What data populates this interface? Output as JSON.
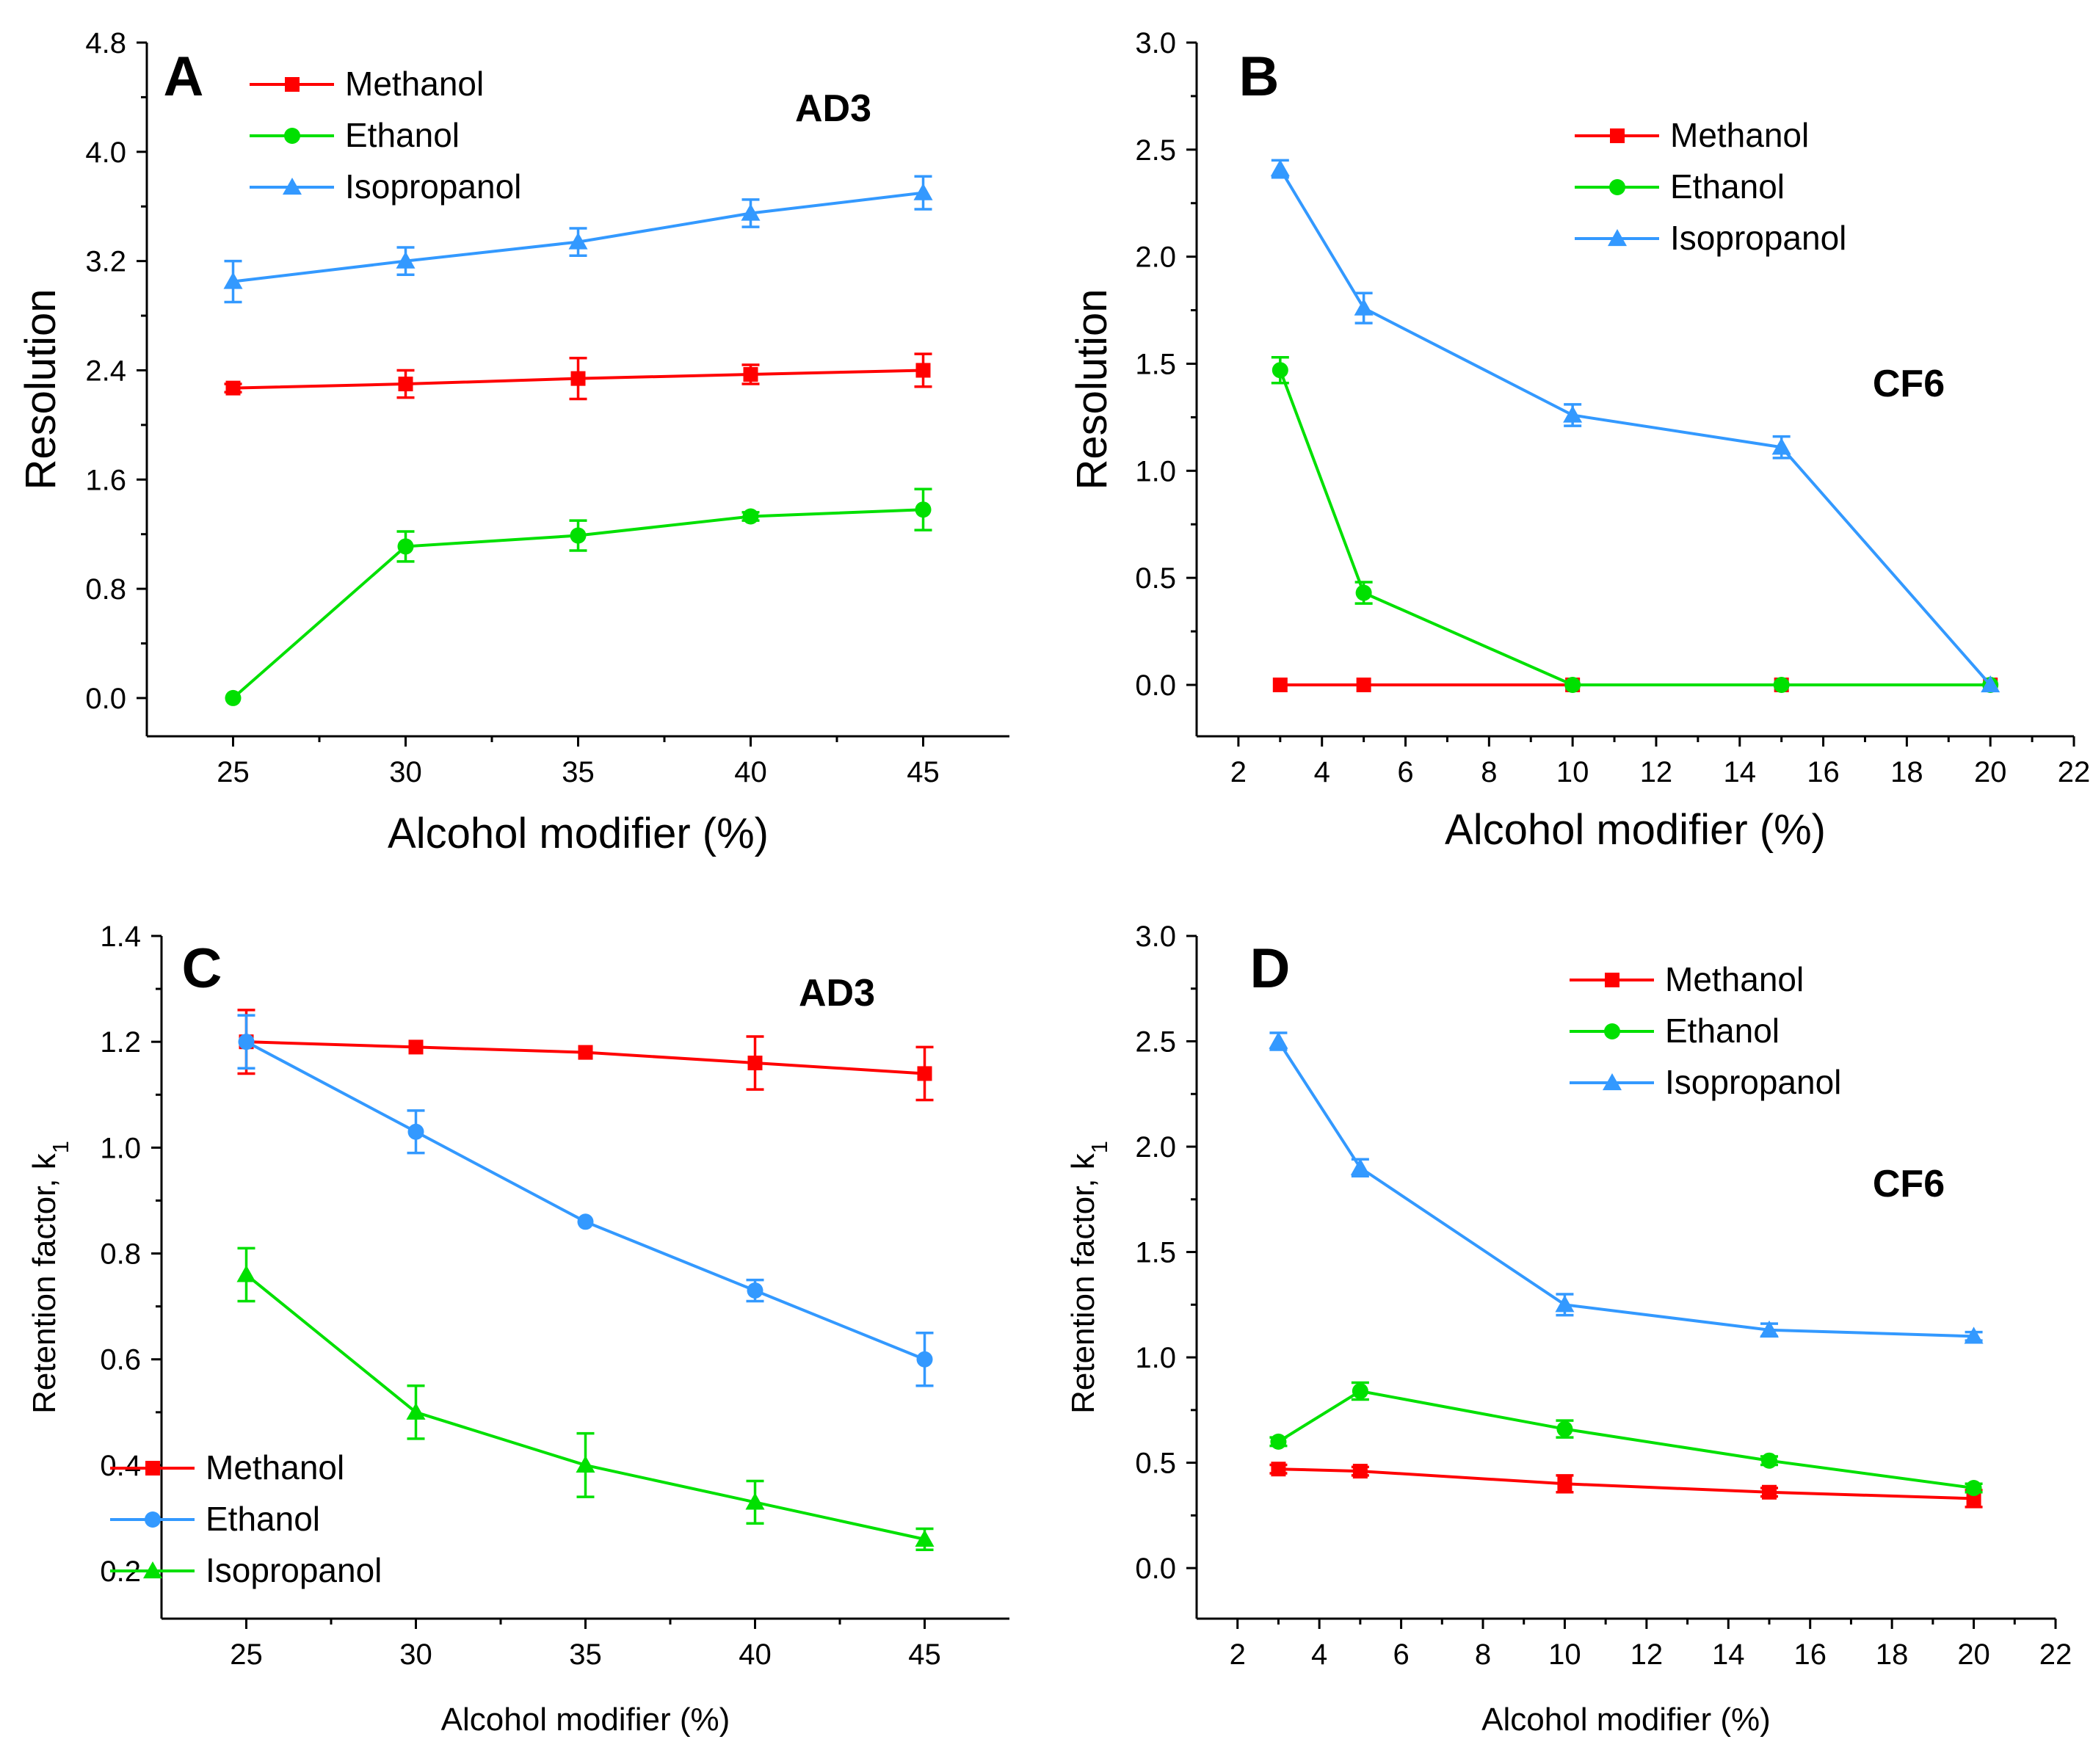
{
  "colors": {
    "methanol": "#ff0000",
    "ethanol": "#00e000",
    "isopropanol": "#3399ff",
    "blue_ethanol": "#3399ff",
    "axis": "#000000"
  },
  "chart_data": [
    {
      "panel_label": "A",
      "annotation": "AD3",
      "type": "line",
      "xlabel": "Alcohol  modifier (%)",
      "ylabel": "Resolution",
      "xlim": [
        22.5,
        47.5
      ],
      "ylim": [
        -0.28,
        4.8
      ],
      "xticks": [
        "25",
        "30",
        "35",
        "40",
        "45"
      ],
      "yticks": [
        "0.0",
        "0.8",
        "1.6",
        "2.4",
        "3.2",
        "4.0",
        "4.8"
      ],
      "legend_position": "top-center",
      "x": [
        25,
        30,
        35,
        40,
        45
      ],
      "series": [
        {
          "name": "Methanol",
          "color_key": "methanol",
          "marker": "square",
          "values": [
            2.27,
            2.3,
            2.34,
            2.37,
            2.4
          ],
          "errors": [
            0.03,
            0.1,
            0.15,
            0.07,
            0.12
          ]
        },
        {
          "name": "Ethanol",
          "color_key": "ethanol",
          "marker": "circle",
          "values": [
            0.0,
            1.11,
            1.19,
            1.33,
            1.38
          ],
          "errors": [
            0.0,
            0.11,
            0.11,
            0.03,
            0.15
          ]
        },
        {
          "name": "Isopropanol",
          "color_key": "isopropanol",
          "marker": "triangle",
          "values": [
            3.05,
            3.2,
            3.34,
            3.55,
            3.7
          ],
          "errors": [
            0.15,
            0.1,
            0.1,
            0.1,
            0.12
          ]
        }
      ]
    },
    {
      "panel_label": "B",
      "annotation": "CF6",
      "type": "line",
      "xlabel": "Alcohol  modifier (%)",
      "ylabel": "Resolution",
      "xlim": [
        1,
        22
      ],
      "ylim": [
        -0.24,
        3.0
      ],
      "xticks": [
        "2",
        "4",
        "6",
        "8",
        "10",
        "12",
        "14",
        "16",
        "18",
        "20",
        "22"
      ],
      "yticks": [
        "0.0",
        "0.5",
        "1.0",
        "1.5",
        "2.0",
        "2.5",
        "3.0"
      ],
      "legend_position": "top-right",
      "x": [
        3,
        5,
        10,
        15,
        20
      ],
      "series": [
        {
          "name": "Methanol",
          "color_key": "methanol",
          "marker": "square",
          "values": [
            0.0,
            0.0,
            0.0,
            0.0,
            0.0
          ],
          "errors": [
            0,
            0,
            0,
            0,
            0
          ]
        },
        {
          "name": "Ethanol",
          "color_key": "ethanol",
          "marker": "circle",
          "values": [
            1.47,
            0.43,
            0.0,
            0.0,
            0.0
          ],
          "errors": [
            0.06,
            0.05,
            0,
            0,
            0
          ]
        },
        {
          "name": "Isopropanol",
          "color_key": "isopropanol",
          "marker": "triangle",
          "values": [
            2.41,
            1.76,
            1.26,
            1.11,
            0.0
          ],
          "errors": [
            0.04,
            0.07,
            0.05,
            0.05,
            0.0
          ]
        }
      ]
    },
    {
      "panel_label": "C",
      "annotation": "AD3",
      "type": "line",
      "xlabel": "Alcohol modifier (%)",
      "ylabel": "Retention factor, k",
      "ylabel_subscript": "1",
      "xlim": [
        22.5,
        47.5
      ],
      "ylim": [
        0.11,
        1.4
      ],
      "xticks": [
        "25",
        "30",
        "35",
        "40",
        "45"
      ],
      "yticks": [
        "0.2",
        "0.4",
        "0.6",
        "0.8",
        "1.0",
        "1.2",
        "1.4"
      ],
      "legend_position": "bottom-left",
      "x": [
        25,
        30,
        35,
        40,
        45
      ],
      "series": [
        {
          "name": "Methanol",
          "color_key": "methanol",
          "marker": "square",
          "values": [
            1.2,
            1.19,
            1.18,
            1.16,
            1.14
          ],
          "errors": [
            0.06,
            0.0,
            0.0,
            0.05,
            0.05
          ]
        },
        {
          "name": "Ethanol",
          "color_key": "blue_ethanol",
          "marker": "circle",
          "values": [
            1.2,
            1.03,
            0.86,
            0.73,
            0.6
          ],
          "errors": [
            0.05,
            0.04,
            0.0,
            0.02,
            0.05
          ]
        },
        {
          "name": "Isopropanol",
          "color_key": "ethanol",
          "marker": "triangle",
          "values": [
            0.76,
            0.5,
            0.4,
            0.33,
            0.26
          ],
          "errors": [
            0.05,
            0.05,
            0.06,
            0.04,
            0.02
          ]
        }
      ]
    },
    {
      "panel_label": "D",
      "annotation": "CF6",
      "type": "line",
      "xlabel": "Alcohol modifier (%)",
      "ylabel": "Retention factor, k",
      "ylabel_subscript": "1",
      "xlim": [
        1,
        22
      ],
      "ylim": [
        -0.24,
        3.0
      ],
      "xticks": [
        "2",
        "4",
        "6",
        "8",
        "10",
        "12",
        "14",
        "16",
        "18",
        "20",
        "22"
      ],
      "yticks": [
        "0.0",
        "0.5",
        "1.0",
        "1.5",
        "2.0",
        "2.5",
        "3.0"
      ],
      "legend_position": "top-right",
      "x": [
        3,
        5,
        10,
        15,
        20
      ],
      "series": [
        {
          "name": "Methanol",
          "color_key": "methanol",
          "marker": "square",
          "values": [
            0.47,
            0.46,
            0.4,
            0.36,
            0.33
          ],
          "errors": [
            0.02,
            0.02,
            0.04,
            0.02,
            0.04
          ]
        },
        {
          "name": "Ethanol",
          "color_key": "ethanol",
          "marker": "circle",
          "values": [
            0.6,
            0.84,
            0.66,
            0.51,
            0.38
          ],
          "errors": [
            0.02,
            0.04,
            0.04,
            0.02,
            0.02
          ]
        },
        {
          "name": "Isopropanol",
          "color_key": "isopropanol",
          "marker": "triangle",
          "values": [
            2.5,
            1.9,
            1.25,
            1.13,
            1.1
          ],
          "errors": [
            0.04,
            0.04,
            0.05,
            0.03,
            0.02
          ]
        }
      ]
    }
  ]
}
